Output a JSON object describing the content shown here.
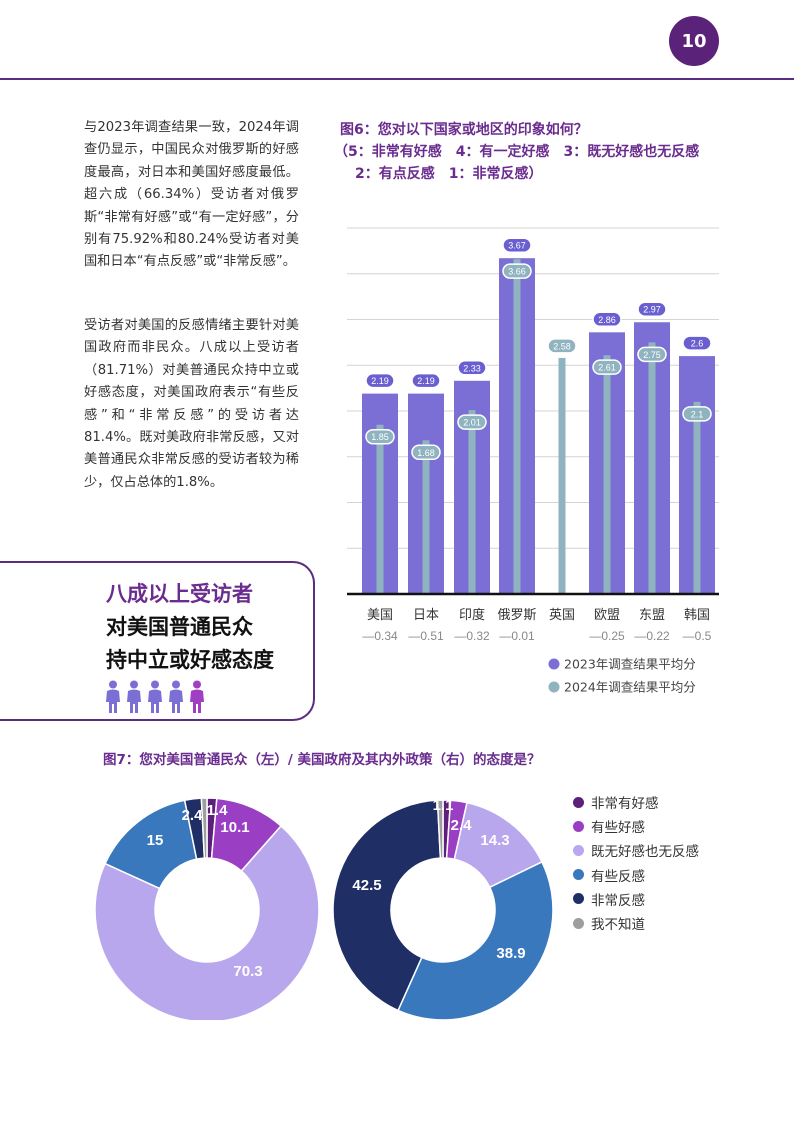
{
  "page_number": "10",
  "left_text": {
    "para1": "与2023年调查结果一致，2024年调查仍显示，中国民众对俄罗斯的好感度最高，对日本和美国好感度最低。超六成（66.34%）受访者对俄罗斯“非常有好感”或“有一定好感”，分别有75.92%和80.24%受访者对美国和日本“有点反感”或“非常反感”。",
    "para2": "受访者对美国的反感情绪主要针对美国政府而非民众。八成以上受访者（81.71%）对美普通民众持中立或好感态度，对美国政府表示“有些反感”和“非常反感”的受访者达81.4%。既对美政府非常反感，又对美普通民众非常反感的受访者较为稀少，仅占总体的1.8%。"
  },
  "callout": {
    "line1": "八成以上受访者",
    "line2": "对美国普通民众",
    "line3": "持中立或好感态度",
    "people_colors": [
      "#7b6fd6",
      "#7b6fd6",
      "#7b6fd6",
      "#7b6fd6",
      "#a03fc2"
    ]
  },
  "fig6": {
    "title_line1": "图6：您对以下国家或地区的印象如何？",
    "title_line2": "（5：非常有好感　4：有一定好感　3：既无好感也无反感",
    "title_line3": "2：有点反感　1：非常反感）"
  },
  "fig7": {
    "title": "图7：您对美国普通民众（左）/ 美国政府及其内外政策（右）的态度是？"
  },
  "chart_data": [
    {
      "type": "bar",
      "categories": [
        "美国",
        "日本",
        "印度",
        "俄罗斯",
        "英国",
        "欧盟",
        "东盟",
        "韩国"
      ],
      "changes": [
        "—0.34",
        "—0.51",
        "—0.32",
        "—0.01",
        "",
        "—0.25",
        "—0.22",
        "—0.5"
      ],
      "series": [
        {
          "name": "2023年调查结果平均分",
          "values": [
            2.19,
            2.19,
            2.33,
            3.67,
            null,
            2.86,
            2.97,
            2.6
          ],
          "color": "#7b6fd6"
        },
        {
          "name": "2024年调查结果平均分",
          "values": [
            1.85,
            1.68,
            2.01,
            3.66,
            2.58,
            2.61,
            2.75,
            2.1
          ],
          "color": "#8fb3bf"
        }
      ],
      "ylim": [
        0,
        4
      ],
      "grid": true,
      "legend": "bottom-right"
    },
    {
      "type": "pie",
      "subtype": "donut",
      "labels": [
        "非常有好感",
        "有些好感",
        "既无好感也无反感",
        "有些反感",
        "非常反感",
        "我不知道"
      ],
      "values": [
        1.4,
        10.1,
        70.3,
        15,
        2.4,
        0.8
      ],
      "value_labels": [
        "1.4",
        "10.1",
        "70.3",
        "15",
        "2.4",
        ""
      ],
      "colors": [
        "#5c1f7a",
        "#9a3fc4",
        "#b9a7ee",
        "#3a78bd",
        "#1f2f66",
        "#9e9e9e"
      ]
    },
    {
      "type": "pie",
      "subtype": "donut",
      "labels": [
        "非常有好感",
        "有些好感",
        "既无好感也无反感",
        "有些反感",
        "非常反感",
        "我不知道"
      ],
      "values": [
        1.1,
        2.4,
        14.3,
        38.9,
        42.5,
        0.8
      ],
      "value_labels": [
        "1.1",
        "2.4",
        "14.3",
        "38.9",
        "42.5",
        ""
      ],
      "colors": [
        "#5c1f7a",
        "#9a3fc4",
        "#b9a7ee",
        "#3a78bd",
        "#1f2f66",
        "#9e9e9e"
      ]
    }
  ]
}
